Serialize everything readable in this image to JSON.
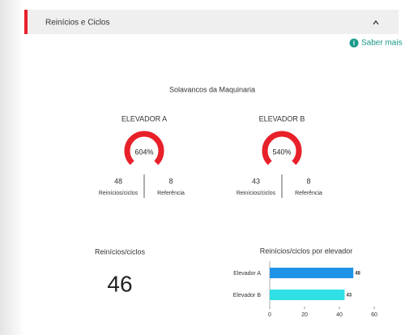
{
  "panel": {
    "title": "Reinícios e Ciclos",
    "help_link": "Saber mais"
  },
  "section_title": "Solavancos da Maquinaria",
  "gauges": [
    {
      "title": "ELEVADOR A",
      "value": 604,
      "value_label": "604%",
      "stats": [
        {
          "value": 48,
          "label": "Reinícios/ciclos"
        },
        {
          "value": 8,
          "label": "Referência"
        }
      ]
    },
    {
      "title": "ELEVADOR B",
      "value": 540,
      "value_label": "540%",
      "stats": [
        {
          "value": 43,
          "label": "Reinícios/ciclos"
        },
        {
          "value": 8,
          "label": "Referência"
        }
      ]
    }
  ],
  "total": {
    "title": "Reinícios/ciclos",
    "value": 46
  },
  "chart_data": {
    "type": "bar",
    "orientation": "horizontal",
    "title": "Reinícios/ciclos por elevador",
    "categories": [
      "Elevador A",
      "Elevador B"
    ],
    "values": [
      48,
      43
    ],
    "colors": [
      "#1f94e6",
      "#2fe0e4"
    ],
    "xlim": [
      0,
      60
    ],
    "xticks": [
      0,
      20,
      40,
      60
    ]
  }
}
